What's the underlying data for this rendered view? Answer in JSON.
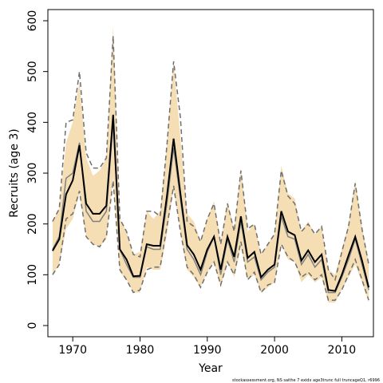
{
  "chart_data": {
    "type": "line",
    "title": "",
    "xlabel": "Year",
    "ylabel": "Recruits (age 3)",
    "xlim": [
      1966.3,
      2014.7
    ],
    "ylim": [
      -22,
      622
    ],
    "x_ticks": [
      1970,
      1980,
      1990,
      2000,
      2010
    ],
    "y_ticks": [
      0,
      100,
      200,
      300,
      400,
      500,
      600
    ],
    "grid": false,
    "legend": "none",
    "colors": {
      "band": "#f5deb3",
      "estimate": "#000000",
      "dashed": "#6f6f6f",
      "gray": "#808080"
    },
    "x": [
      1967,
      1968,
      1969,
      1970,
      1971,
      1972,
      1973,
      1974,
      1975,
      1976,
      1977,
      1978,
      1979,
      1980,
      1981,
      1982,
      1983,
      1984,
      1985,
      1986,
      1987,
      1988,
      1989,
      1990,
      1991,
      1992,
      1993,
      1994,
      1995,
      1996,
      1997,
      1998,
      1999,
      2000,
      2001,
      2002,
      2003,
      2004,
      2005,
      2006,
      2007,
      2008,
      2009,
      2010,
      2011,
      2012,
      2013,
      2014
    ],
    "series": [
      {
        "role": "estimate",
        "style": "solid-black",
        "values": [
          147,
          170,
          258,
          286,
          355,
          240,
          220,
          220,
          236,
          415,
          150,
          130,
          97,
          98,
          160,
          157,
          157,
          255,
          368,
          260,
          158,
          140,
          110,
          150,
          175,
          110,
          175,
          135,
          215,
          133,
          145,
          95,
          110,
          120,
          225,
          185,
          178,
          128,
          148,
          125,
          140,
          70,
          68,
          100,
          138,
          175,
          128,
          75
        ]
      },
      {
        "role": "band_upper",
        "style": "fill-top",
        "values": [
          205,
          230,
          360,
          400,
          480,
          330,
          295,
          305,
          330,
          590,
          210,
          185,
          140,
          145,
          225,
          210,
          225,
          360,
          520,
          370,
          220,
          205,
          165,
          210,
          245,
          165,
          245,
          190,
          310,
          185,
          200,
          140,
          160,
          180,
          315,
          260,
          250,
          185,
          205,
          180,
          195,
          110,
          100,
          150,
          200,
          285,
          195,
          125
        ]
      },
      {
        "role": "band_lower",
        "style": "fill-bottom",
        "values": [
          100,
          120,
          190,
          210,
          260,
          175,
          160,
          155,
          170,
          290,
          105,
          90,
          65,
          65,
          115,
          110,
          110,
          180,
          270,
          185,
          110,
          95,
          75,
          105,
          125,
          75,
          125,
          95,
          155,
          90,
          100,
          65,
          75,
          85,
          160,
          130,
          125,
          85,
          100,
          85,
          95,
          45,
          45,
          70,
          95,
          120,
          85,
          45
        ]
      },
      {
        "role": "dashed_upper",
        "style": "dashed-gray",
        "values": [
          205,
          230,
          400,
          405,
          500,
          340,
          310,
          310,
          330,
          570,
          210,
          185,
          140,
          135,
          225,
          225,
          215,
          355,
          520,
          410,
          205,
          195,
          165,
          210,
          240,
          160,
          240,
          185,
          305,
          190,
          200,
          140,
          160,
          180,
          305,
          255,
          240,
          185,
          200,
          180,
          195,
          110,
          90,
          145,
          195,
          280,
          190,
          120
        ]
      },
      {
        "role": "dashed_lower",
        "style": "dashed-gray",
        "values": [
          100,
          120,
          210,
          220,
          265,
          175,
          160,
          155,
          175,
          285,
          110,
          90,
          65,
          70,
          110,
          115,
          115,
          195,
          275,
          185,
          115,
          100,
          75,
          105,
          125,
          80,
          125,
          100,
          165,
          90,
          105,
          65,
          80,
          85,
          160,
          135,
          125,
          95,
          105,
          90,
          100,
          50,
          50,
          70,
          100,
          130,
          90,
          50
        ]
      },
      {
        "role": "gray_line",
        "style": "solid-gray",
        "values": [
          150,
          175,
          290,
          300,
          360,
          225,
          205,
          205,
          225,
          400,
          150,
          120,
          95,
          95,
          155,
          150,
          150,
          240,
          350,
          250,
          150,
          130,
          100,
          145,
          175,
          100,
          170,
          125,
          205,
          125,
          135,
          90,
          105,
          115,
          215,
          175,
          170,
          120,
          140,
          115,
          130,
          65,
          65,
          95,
          130,
          170,
          120,
          70
        ]
      }
    ]
  },
  "footnote": "stockassessment.org, NS saithe 7 exidx age3trunc full truncageQ1, r6996"
}
